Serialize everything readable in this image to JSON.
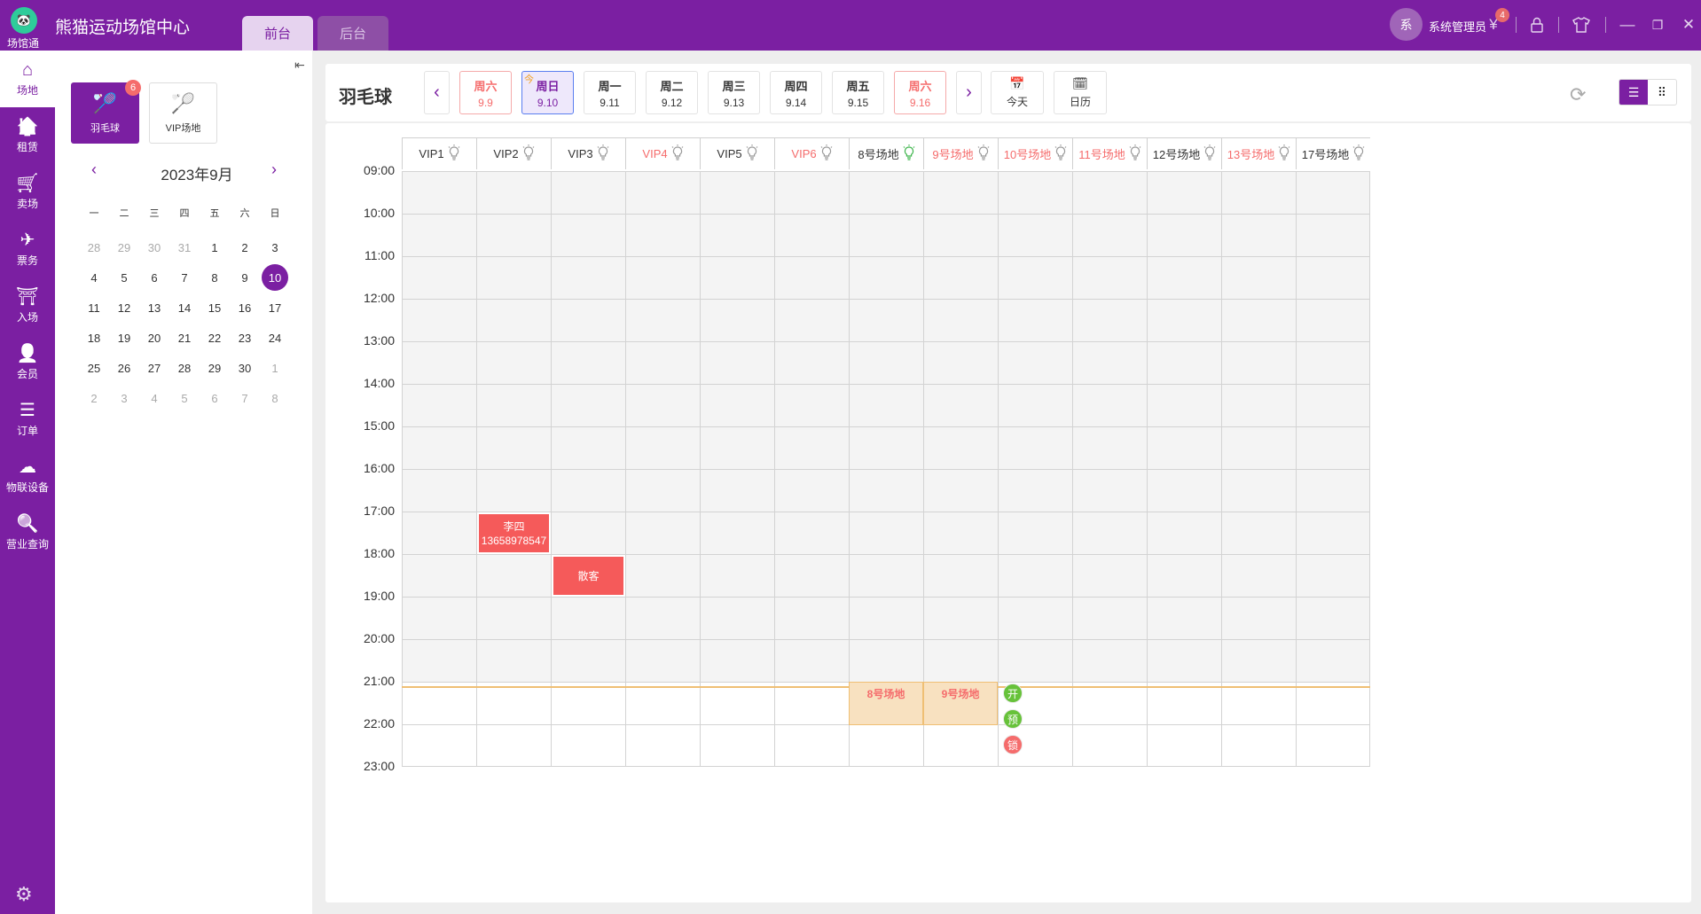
{
  "header": {
    "logo_text": "场馆通",
    "title": "熊猫运动场馆中心",
    "tabs": [
      {
        "label": "前台",
        "active": true
      },
      {
        "label": "后台",
        "active": false
      }
    ],
    "avatar_text": "系",
    "username": "系统管理员",
    "bill_badge": "4",
    "icons": [
      "yuan-bill-icon",
      "lock-icon",
      "shirt-icon",
      "minimize-icon",
      "restore-icon",
      "close-icon"
    ]
  },
  "sidebar": {
    "items": [
      {
        "label": "场地",
        "icon": "home-icon",
        "active": true
      },
      {
        "label": "租赁",
        "icon": "rent-icon"
      },
      {
        "label": "卖场",
        "icon": "cart-icon"
      },
      {
        "label": "票务",
        "icon": "ticket-icon"
      },
      {
        "label": "入场",
        "icon": "gate-icon"
      },
      {
        "label": "会员",
        "icon": "member-icon"
      },
      {
        "label": "订单",
        "icon": "layers-icon"
      },
      {
        "label": "物联设备",
        "icon": "iot-icon"
      },
      {
        "label": "营业查询",
        "icon": "search-yuan-icon"
      }
    ],
    "settings_icon": "gear-icon"
  },
  "panel": {
    "sports": [
      {
        "label": "羽毛球",
        "badge": "6",
        "active": true
      },
      {
        "label": "VIP场地",
        "active": false
      }
    ],
    "calendar": {
      "title": "2023年9月",
      "weekdays": [
        "一",
        "二",
        "三",
        "四",
        "五",
        "六",
        "日"
      ],
      "days": [
        {
          "d": "28",
          "o": 1
        },
        {
          "d": "29",
          "o": 1
        },
        {
          "d": "30",
          "o": 1
        },
        {
          "d": "31",
          "o": 1
        },
        {
          "d": "1"
        },
        {
          "d": "2"
        },
        {
          "d": "3"
        },
        {
          "d": "4"
        },
        {
          "d": "5"
        },
        {
          "d": "6"
        },
        {
          "d": "7"
        },
        {
          "d": "8"
        },
        {
          "d": "9"
        },
        {
          "d": "10",
          "sel": 1
        },
        {
          "d": "11"
        },
        {
          "d": "12"
        },
        {
          "d": "13"
        },
        {
          "d": "14"
        },
        {
          "d": "15"
        },
        {
          "d": "16"
        },
        {
          "d": "17"
        },
        {
          "d": "18"
        },
        {
          "d": "19"
        },
        {
          "d": "20"
        },
        {
          "d": "21"
        },
        {
          "d": "22"
        },
        {
          "d": "23"
        },
        {
          "d": "24"
        },
        {
          "d": "25"
        },
        {
          "d": "26"
        },
        {
          "d": "27"
        },
        {
          "d": "28"
        },
        {
          "d": "29"
        },
        {
          "d": "30"
        },
        {
          "d": "1",
          "o": 1
        },
        {
          "d": "2",
          "o": 1
        },
        {
          "d": "3",
          "o": 1
        },
        {
          "d": "4",
          "o": 1
        },
        {
          "d": "5",
          "o": 1
        },
        {
          "d": "6",
          "o": 1
        },
        {
          "d": "7",
          "o": 1
        },
        {
          "d": "8",
          "o": 1
        }
      ]
    }
  },
  "main": {
    "title": "羽毛球",
    "dates": [
      {
        "label": "周六",
        "date": "9.9",
        "weekend": true
      },
      {
        "label": "周日",
        "date": "9.10",
        "today": true,
        "today_mark": "今"
      },
      {
        "label": "周一",
        "date": "9.11"
      },
      {
        "label": "周二",
        "date": "9.12"
      },
      {
        "label": "周三",
        "date": "9.13"
      },
      {
        "label": "周四",
        "date": "9.14"
      },
      {
        "label": "周五",
        "date": "9.15"
      },
      {
        "label": "周六",
        "date": "9.16",
        "weekend": true
      }
    ],
    "today_label": "今天",
    "calendar_label": "日历",
    "courts": [
      {
        "name": "VIP1",
        "light": "off"
      },
      {
        "name": "VIP2",
        "light": "off"
      },
      {
        "name": "VIP3",
        "light": "off"
      },
      {
        "name": "VIP4",
        "light": "off",
        "red": true
      },
      {
        "name": "VIP5",
        "light": "off"
      },
      {
        "name": "VIP6",
        "light": "off",
        "red": true
      },
      {
        "name": "8号场地",
        "light": "on"
      },
      {
        "name": "9号场地",
        "light": "off",
        "red": true
      },
      {
        "name": "10号场地",
        "light": "off",
        "red": true
      },
      {
        "name": "11号场地",
        "light": "off",
        "red": true
      },
      {
        "name": "12号场地",
        "light": "off"
      },
      {
        "name": "13号场地",
        "light": "off",
        "red": true
      },
      {
        "name": "17号场地",
        "light": "off"
      }
    ],
    "times": [
      "09:00",
      "10:00",
      "11:00",
      "12:00",
      "13:00",
      "14:00",
      "15:00",
      "16:00",
      "17:00",
      "18:00",
      "19:00",
      "20:00",
      "21:00",
      "22:00",
      "23:00"
    ],
    "past_until": "21:00",
    "current_time": "21:06",
    "bookings": [
      {
        "court": "VIP2",
        "start": "17:00",
        "end": "18:00",
        "lines": [
          "李四",
          "13658978547"
        ]
      },
      {
        "court": "VIP3",
        "start": "18:00",
        "end": "19:00",
        "lines": [
          "散客"
        ]
      }
    ],
    "selections": [
      {
        "court": "8号场地",
        "start": "21:00",
        "end": "22:00",
        "label": "8号场地"
      },
      {
        "court": "9号场地",
        "start": "21:00",
        "end": "22:00",
        "label": "9号场地"
      }
    ],
    "actions": [
      {
        "label": "开",
        "color": "#67c23a"
      },
      {
        "label": "预",
        "color": "#67c23a"
      },
      {
        "label": "锁",
        "color": "#f56c6c"
      }
    ]
  },
  "colors": {
    "brand": "#7b1fa2",
    "booked": "#f55a5a",
    "selected": "#f8e1c0",
    "weekend": "#f56c6c"
  }
}
